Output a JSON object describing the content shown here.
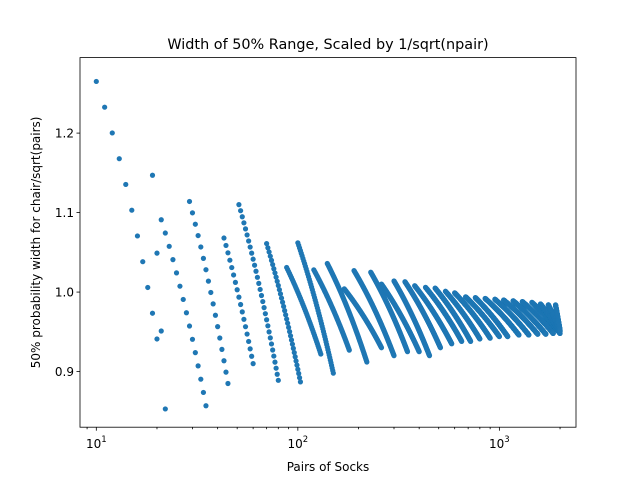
{
  "chart_data": {
    "type": "scatter",
    "title": "Width of 50% Range, Scaled by 1/sqrt(npair)",
    "xlabel": "Pairs of Socks",
    "ylabel": "50% probability width for chair/sqrt(pairs)",
    "xscale": "log",
    "xlim": [
      8.3,
      2400
    ],
    "ylim": [
      0.83,
      1.295
    ],
    "grid": false,
    "legend": "none",
    "marker_color": "#1f77b4",
    "x_ticks": [
      {
        "value": 10,
        "base": "10",
        "exp": "1"
      },
      {
        "value": 100,
        "base": "10",
        "exp": "2"
      },
      {
        "value": 1000,
        "base": "10",
        "exp": "3"
      }
    ],
    "y_ticks": [
      {
        "value": 0.9,
        "label": "0.9"
      },
      {
        "value": 1.0,
        "label": "1.0"
      },
      {
        "value": 1.1,
        "label": "1.1"
      },
      {
        "value": 1.2,
        "label": "1.2"
      }
    ],
    "bands": [
      {
        "x_start": 10,
        "x_end": 20,
        "y_start": 1.265,
        "y_end": 0.941
      },
      {
        "x_start": 19,
        "x_end": 22,
        "y_start": 1.147,
        "y_end": 0.853
      },
      {
        "x_start": 21,
        "x_end": 35,
        "y_start": 1.091,
        "y_end": 0.857
      },
      {
        "x_start": 29,
        "x_end": 45,
        "y_start": 1.114,
        "y_end": 0.885
      },
      {
        "x_start": 43,
        "x_end": 60,
        "y_start": 1.068,
        "y_end": 0.91
      },
      {
        "x_start": 51,
        "x_end": 80,
        "y_start": 1.11,
        "y_end": 0.889
      },
      {
        "x_start": 70,
        "x_end": 103,
        "y_start": 1.061,
        "y_end": 0.887
      },
      {
        "x_start": 88,
        "x_end": 130,
        "y_start": 1.031,
        "y_end": 0.922
      },
      {
        "x_start": 100,
        "x_end": 150,
        "y_start": 1.062,
        "y_end": 0.898
      },
      {
        "x_start": 120,
        "x_end": 180,
        "y_start": 1.028,
        "y_end": 0.927
      },
      {
        "x_start": 140,
        "x_end": 220,
        "y_start": 1.036,
        "y_end": 0.912
      },
      {
        "x_start": 170,
        "x_end": 260,
        "y_start": 1.004,
        "y_end": 0.93
      },
      {
        "x_start": 190,
        "x_end": 300,
        "y_start": 1.027,
        "y_end": 0.92
      },
      {
        "x_start": 230,
        "x_end": 350,
        "y_start": 1.025,
        "y_end": 0.925
      },
      {
        "x_start": 260,
        "x_end": 400,
        "y_start": 1.01,
        "y_end": 0.925
      },
      {
        "x_start": 300,
        "x_end": 450,
        "y_start": 1.014,
        "y_end": 0.92
      },
      {
        "x_start": 340,
        "x_end": 510,
        "y_start": 1.013,
        "y_end": 0.93
      },
      {
        "x_start": 380,
        "x_end": 580,
        "y_start": 1.008,
        "y_end": 0.935
      },
      {
        "x_start": 430,
        "x_end": 650,
        "y_start": 1.006,
        "y_end": 0.938
      },
      {
        "x_start": 480,
        "x_end": 720,
        "y_start": 1.005,
        "y_end": 0.938
      },
      {
        "x_start": 540,
        "x_end": 800,
        "y_start": 1.001,
        "y_end": 0.941
      },
      {
        "x_start": 600,
        "x_end": 900,
        "y_start": 0.999,
        "y_end": 0.942
      },
      {
        "x_start": 680,
        "x_end": 1000,
        "y_start": 0.994,
        "y_end": 0.944
      },
      {
        "x_start": 760,
        "x_end": 1100,
        "y_start": 0.993,
        "y_end": 0.944
      },
      {
        "x_start": 850,
        "x_end": 1250,
        "y_start": 0.992,
        "y_end": 0.946
      },
      {
        "x_start": 950,
        "x_end": 1400,
        "y_start": 0.991,
        "y_end": 0.946
      },
      {
        "x_start": 1050,
        "x_end": 1550,
        "y_start": 0.99,
        "y_end": 0.947
      },
      {
        "x_start": 1170,
        "x_end": 1700,
        "y_start": 0.989,
        "y_end": 0.947
      },
      {
        "x_start": 1300,
        "x_end": 1850,
        "y_start": 0.988,
        "y_end": 0.948
      },
      {
        "x_start": 1450,
        "x_end": 2000,
        "y_start": 0.987,
        "y_end": 0.948
      },
      {
        "x_start": 1600,
        "x_end": 2000,
        "y_start": 0.985,
        "y_end": 0.95
      },
      {
        "x_start": 1750,
        "x_end": 2000,
        "y_start": 0.984,
        "y_end": 0.951
      },
      {
        "x_start": 1900,
        "x_end": 2000,
        "y_start": 0.984,
        "y_end": 0.952
      }
    ]
  }
}
